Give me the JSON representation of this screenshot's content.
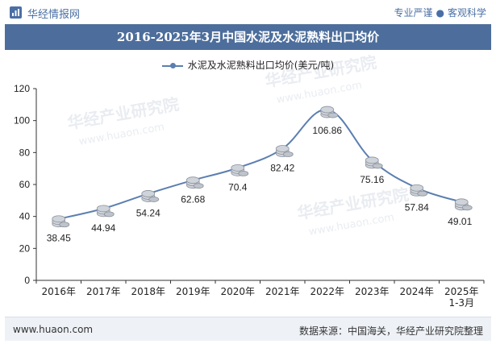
{
  "header": {
    "brand": "华经情报网",
    "slogan_left": "专业严谨",
    "slogan_sep": "●",
    "slogan_right": "客观科学"
  },
  "title": "2016-2025年3月中国水泥及水泥熟料出口均价",
  "watermark": {
    "cn": "华经产业研究院",
    "url": "www.huaon.com"
  },
  "colors": {
    "title_bg": "#4d6e9c",
    "series": "#5b7fb0",
    "brand": "#4a6fa5"
  },
  "footer": {
    "website": "www.huaon.com",
    "source": "数据来源：中国海关，华经产业研究院整理"
  },
  "chart_data": {
    "type": "line",
    "title": "2016-2025年3月中国水泥及水泥熟料出口均价",
    "legend_position": "top-center",
    "categories": [
      "2016年",
      "2017年",
      "2018年",
      "2019年",
      "2020年",
      "2021年",
      "2022年",
      "2023年",
      "2024年",
      "2025年\n1-3月"
    ],
    "series": [
      {
        "name": "水泥及水泥熟料出口均价(美元/吨)",
        "values": [
          38.45,
          44.94,
          54.24,
          62.68,
          70.4,
          82.42,
          106.86,
          75.16,
          57.84,
          49.01
        ],
        "labels": [
          "38.45",
          "44.94",
          "54.24",
          "62.68",
          "70.4",
          "82.42",
          "106.86",
          "75.16",
          "57.84",
          "49.01"
        ]
      }
    ],
    "ylim": [
      0,
      120
    ],
    "yticks": [
      0,
      20,
      40,
      60,
      80,
      100,
      120
    ],
    "grid": false
  }
}
